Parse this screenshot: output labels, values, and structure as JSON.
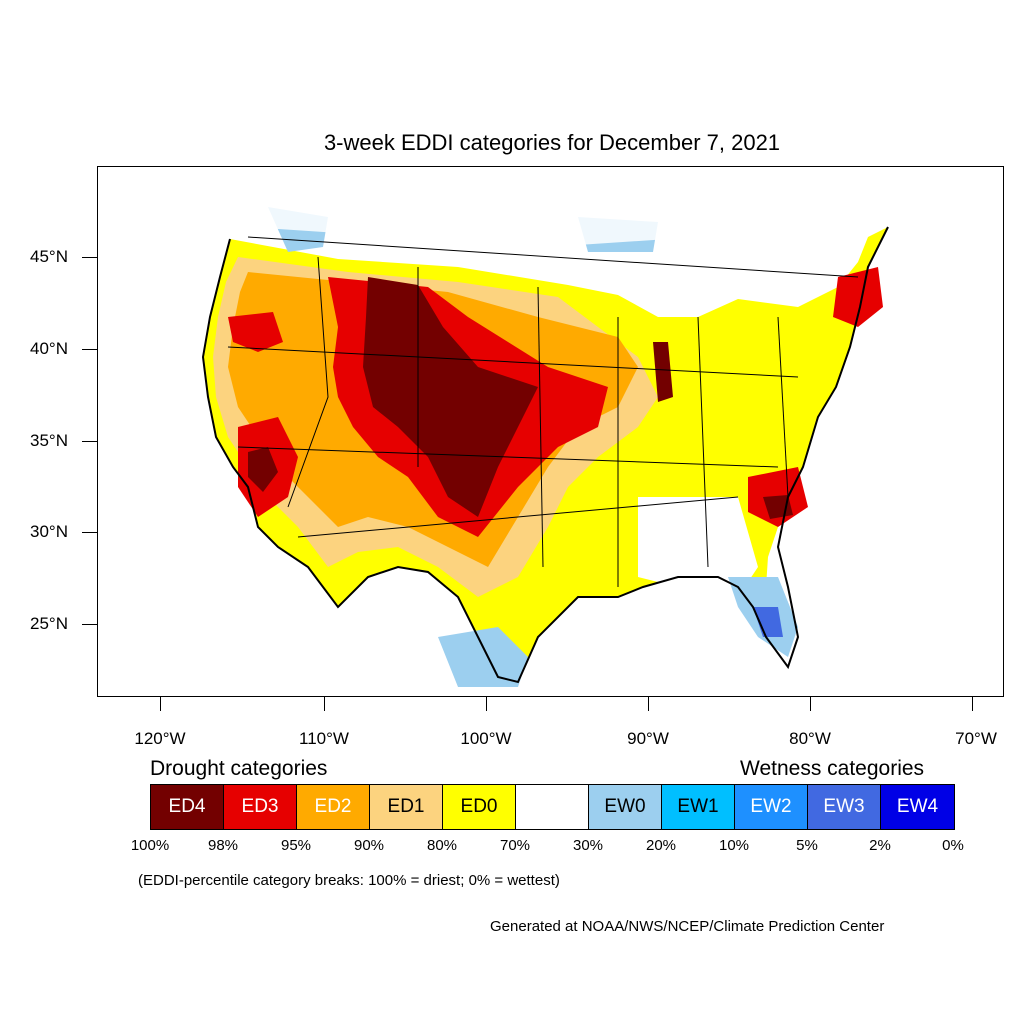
{
  "title": "3-week EDDI categories for December 7, 2021",
  "lat_labels": [
    "45°N",
    "40°N",
    "35°N",
    "30°N",
    "25°N"
  ],
  "lon_labels": [
    "120°W",
    "110°W",
    "100°W",
    "90°W",
    "80°W",
    "70°W"
  ],
  "legend": {
    "drought_heading": "Drought categories",
    "wetness_heading": "Wetness categories",
    "categories": [
      {
        "label": "ED4",
        "color": "#730000"
      },
      {
        "label": "ED3",
        "color": "#e60000"
      },
      {
        "label": "ED2",
        "color": "#ffaa00"
      },
      {
        "label": "ED1",
        "color": "#fcd37f"
      },
      {
        "label": "ED0",
        "color": "#ffff00"
      },
      {
        "label": "",
        "color": "#ffffff"
      },
      {
        "label": "EW0",
        "color": "#9ccfef"
      },
      {
        "label": "EW1",
        "color": "#00bfff"
      },
      {
        "label": "EW2",
        "color": "#1e90ff"
      },
      {
        "label": "EW3",
        "color": "#4169e1"
      },
      {
        "label": "EW4",
        "color": "#0000e6"
      }
    ],
    "breaks": [
      "100%",
      "98%",
      "95%",
      "90%",
      "80%",
      "70%",
      "30%",
      "20%",
      "10%",
      "5%",
      "2%",
      "0%"
    ]
  },
  "note": "(EDDI-percentile category breaks: 100% = driest; 0% = wettest)",
  "credit": "Generated at NOAA/NWS/NCEP/Climate Prediction Center"
}
